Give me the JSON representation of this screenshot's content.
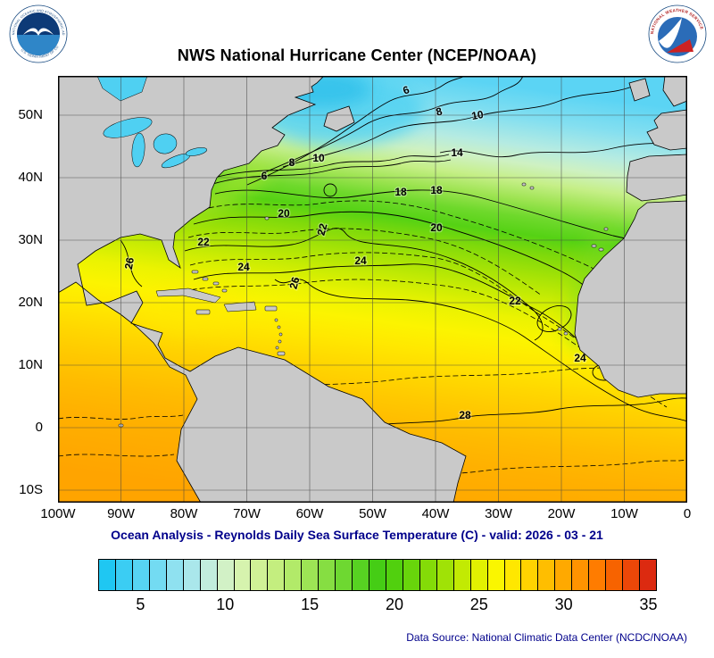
{
  "header": {
    "title": "NWS National Hurricane Center (NCEP/NOAA)"
  },
  "logos": {
    "noaa": {
      "ring_top": "NATIONAL OCEANIC AND ATMOSPHERIC ADMINISTRATION",
      "ring_bottom": "U.S. DEPARTMENT OF COMMERCE"
    },
    "nws": {
      "ring_text": "NATIONAL WEATHER SERVICE"
    }
  },
  "map": {
    "lat_labels": [
      "50N",
      "40N",
      "30N",
      "20N",
      "10N",
      "0",
      "10S"
    ],
    "lon_labels": [
      "100W",
      "90W",
      "80W",
      "70W",
      "60W",
      "50W",
      "40W",
      "30W",
      "20W",
      "10W",
      "0"
    ],
    "contour_labels": [
      {
        "v": "6"
      },
      {
        "v": "8"
      },
      {
        "v": "10"
      },
      {
        "v": "6"
      },
      {
        "v": "8"
      },
      {
        "v": "10"
      },
      {
        "v": "14"
      },
      {
        "v": "18"
      },
      {
        "v": "18"
      },
      {
        "v": "20"
      },
      {
        "v": "20"
      },
      {
        "v": "22"
      },
      {
        "v": "22"
      },
      {
        "v": "22"
      },
      {
        "v": "20"
      },
      {
        "v": "24"
      },
      {
        "v": "24"
      },
      {
        "v": "24"
      },
      {
        "v": "26"
      },
      {
        "v": "26"
      },
      {
        "v": "28"
      }
    ]
  },
  "subtitle": "Ocean Analysis - Reynolds Daily Sea Surface Temperature (C) - valid: 2026 - 03 - 21",
  "colorbar": {
    "min": 3,
    "tick_values": [
      5,
      10,
      15,
      20,
      25,
      30,
      35
    ],
    "tick_labels": [
      "5",
      "10",
      "15",
      "20",
      "25",
      "30",
      "35"
    ],
    "colors": [
      "#1FC7F2",
      "#3BCDF3",
      "#57D4F3",
      "#73DBF2",
      "#8FE1F0",
      "#AAE7EB",
      "#C2EDDD",
      "#D2F1C6",
      "#D6F3AE",
      "#D0F196",
      "#C4EE7F",
      "#B2EA69",
      "#9DE455",
      "#86DE42",
      "#6ED831",
      "#57D222",
      "#45CD15",
      "#51D00E",
      "#68D50B",
      "#84DB08",
      "#A0E206",
      "#C2EA03",
      "#E2F101",
      "#FAF600",
      "#FFE700",
      "#FFD300",
      "#FFBE00",
      "#FFA900",
      "#FF9300",
      "#FF7C00",
      "#F76300",
      "#EC4708",
      "#DC2A10"
    ]
  },
  "footer": {
    "data_source": "Data Source: National Climatic Data Center (NCDC/NOAA)"
  }
}
